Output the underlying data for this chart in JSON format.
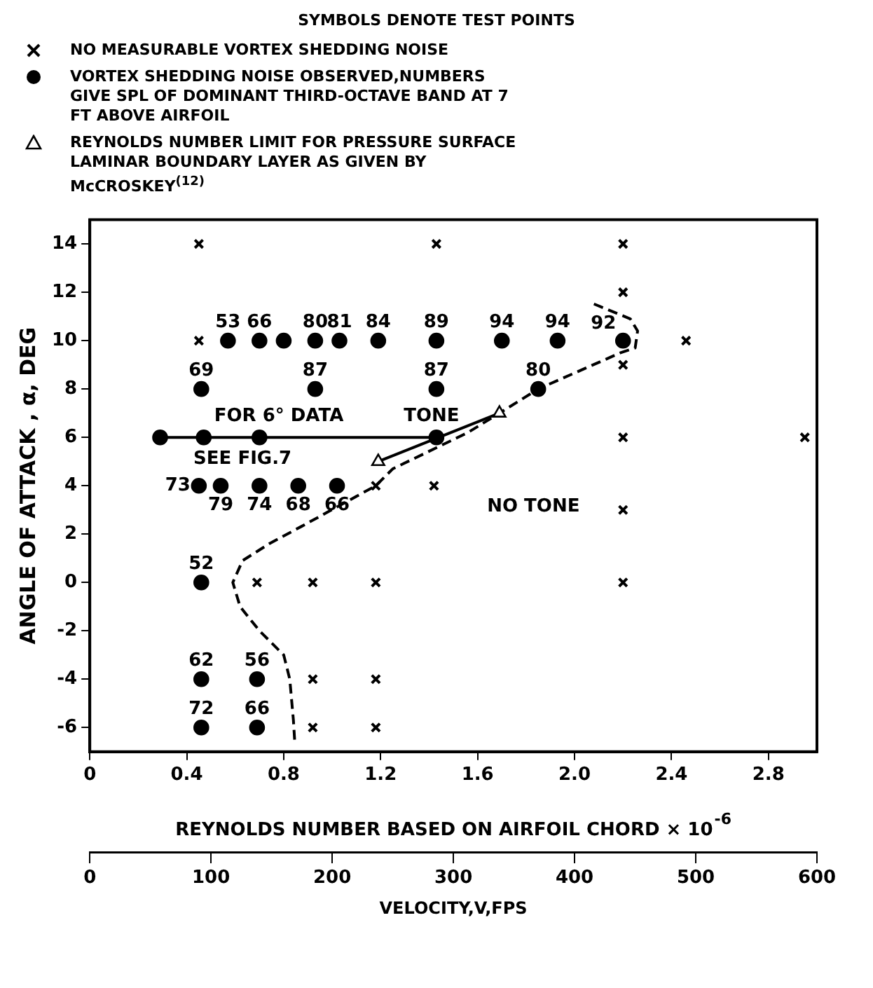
{
  "chart_data": {
    "type": "scatter",
    "title": "SYMBOLS DENOTE TEST POINTS",
    "xlabel": "REYNOLDS NUMBER BASED ON AIRFOIL CHORD × 10$^{-6}$",
    "ylabel": "ANGLE OF ATTACK , α, DEG",
    "x2label": "VELOCITY,V,FPS",
    "xlim": [
      0,
      3.0
    ],
    "xticks": [
      0,
      0.4,
      0.8,
      1.2,
      1.6,
      {
        "value": 2,
        "label": "2.0"
      },
      2.4,
      2.8
    ],
    "ylim": [
      -7,
      15
    ],
    "yticks": [
      -6,
      -4,
      -2,
      0,
      2,
      4,
      6,
      8,
      10,
      12,
      14
    ],
    "x2lim": [
      0,
      600
    ],
    "x2ticks": [
      0,
      100,
      200,
      300,
      400,
      500,
      600
    ],
    "grid": false,
    "legend": "top",
    "series": [
      {
        "name": "NO MEASURABLE VORTEX SHEDDING NOISE",
        "type": "scatter",
        "marker": "cross",
        "color": "#000000",
        "x": [
          0.45,
          1.43,
          2.2,
          0.45,
          2.46,
          2.2,
          2.2,
          2.2,
          2.95,
          1.18,
          1.42,
          2.2,
          0.69,
          0.92,
          1.18,
          2.2,
          0.92,
          1.18,
          0.92,
          1.18
        ],
        "values": [
          14,
          14,
          14,
          10,
          10,
          12,
          9,
          6,
          6,
          4,
          4,
          3,
          0,
          0,
          0,
          0,
          -4,
          -4,
          -6,
          -6
        ]
      },
      {
        "name": "VORTEX SHEDDING NOISE OBSERVED,NUMBERS GIVE SPL OF DOMINANT THIRD-OCTAVE BAND AT 7 FT ABOVE AIRFOIL",
        "type": "scatter",
        "marker": "circle",
        "color": "#000000",
        "x": [
          0.57,
          0.7,
          0.8,
          0.93,
          1.03,
          1.19,
          1.43,
          1.7,
          1.93,
          2.2,
          0.46,
          0.93,
          1.43,
          1.85,
          0.29,
          0.47,
          0.7,
          1.43,
          0.45,
          0.54,
          0.7,
          0.86,
          1.02,
          0.46,
          0.46,
          0.69,
          0.46,
          0.69
        ],
        "values": [
          10,
          10,
          10,
          10,
          10,
          10,
          10,
          10,
          10,
          10,
          8,
          8,
          8,
          8,
          6,
          6,
          6,
          6,
          4,
          4,
          4,
          4,
          4,
          0,
          -4,
          -4,
          -6,
          -6
        ]
      },
      {
        "name": "REYNOLDS NUMBER LIMIT FOR PRESSURE SURFACE LAMINAR BOUNDARY LAYER AS GIVEN BY McCROSKEY$^{(12)}$",
        "type": "line",
        "marker": "triangle",
        "line_style": "solid",
        "color": "#000000",
        "x": [
          1.19,
          1.69
        ],
        "values": [
          5,
          7
        ]
      },
      {
        "type": "line",
        "marker": "none",
        "line_style": "solid",
        "color": "#000000",
        "x": [
          0.29,
          1.43
        ],
        "values": [
          6,
          6
        ]
      },
      {
        "type": "line",
        "marker": "none",
        "line_style": "dashed",
        "color": "#000000",
        "x": [
          0.845,
          0.84,
          0.825,
          0.8,
          0.7,
          0.62,
          0.59,
          0.63,
          0.74,
          0.87,
          1.18,
          1.25,
          1.56,
          1.69,
          1.85,
          2.19,
          2.25,
          2.26,
          2.23,
          2.06
        ],
        "values": [
          -6.5,
          -5.7,
          -4,
          -3,
          -2,
          -1,
          0,
          0.9,
          1.6,
          2.3,
          4,
          4.7,
          6.2,
          7,
          8,
          9.5,
          9.7,
          10.4,
          10.9,
          11.6
        ]
      }
    ],
    "annotations": [
      "FOR 6° DATA",
      "SEE FIG.7",
      "TONE",
      "NO TONE",
      {
        "text": "53",
        "x": 0.57,
        "y": 10
      },
      {
        "text": "66",
        "x": 0.7,
        "y": 10
      },
      {
        "text": "80",
        "x": 0.93,
        "y": 10
      },
      {
        "text": "81",
        "x": 1.03,
        "y": 10
      },
      {
        "text": "84",
        "x": 1.19,
        "y": 10
      },
      {
        "text": "89",
        "x": 1.43,
        "y": 10
      },
      {
        "text": "94",
        "x": 1.7,
        "y": 10
      },
      {
        "text": "94",
        "x": 1.93,
        "y": 10
      },
      {
        "text": "92",
        "x": 2.2,
        "y": 10
      },
      {
        "text": "69",
        "x": 0.46,
        "y": 8
      },
      {
        "text": "87",
        "x": 0.93,
        "y": 8
      },
      {
        "text": "87",
        "x": 1.43,
        "y": 8
      },
      {
        "text": "80",
        "x": 1.85,
        "y": 8
      },
      {
        "text": "73",
        "x": 0.45,
        "y": 4
      },
      {
        "text": "79",
        "x": 0.54,
        "y": 4
      },
      {
        "text": "74",
        "x": 0.7,
        "y": 4
      },
      {
        "text": "68",
        "x": 0.86,
        "y": 4
      },
      {
        "text": "66",
        "x": 1.02,
        "y": 4
      },
      {
        "text": "52",
        "x": 0.46,
        "y": 0
      },
      {
        "text": "62",
        "x": 0.46,
        "y": -4
      },
      {
        "text": "56",
        "x": 0.69,
        "y": -4
      },
      {
        "text": "72",
        "x": 0.46,
        "y": -6
      },
      {
        "text": "66",
        "x": 0.69,
        "y": -6
      }
    ]
  }
}
